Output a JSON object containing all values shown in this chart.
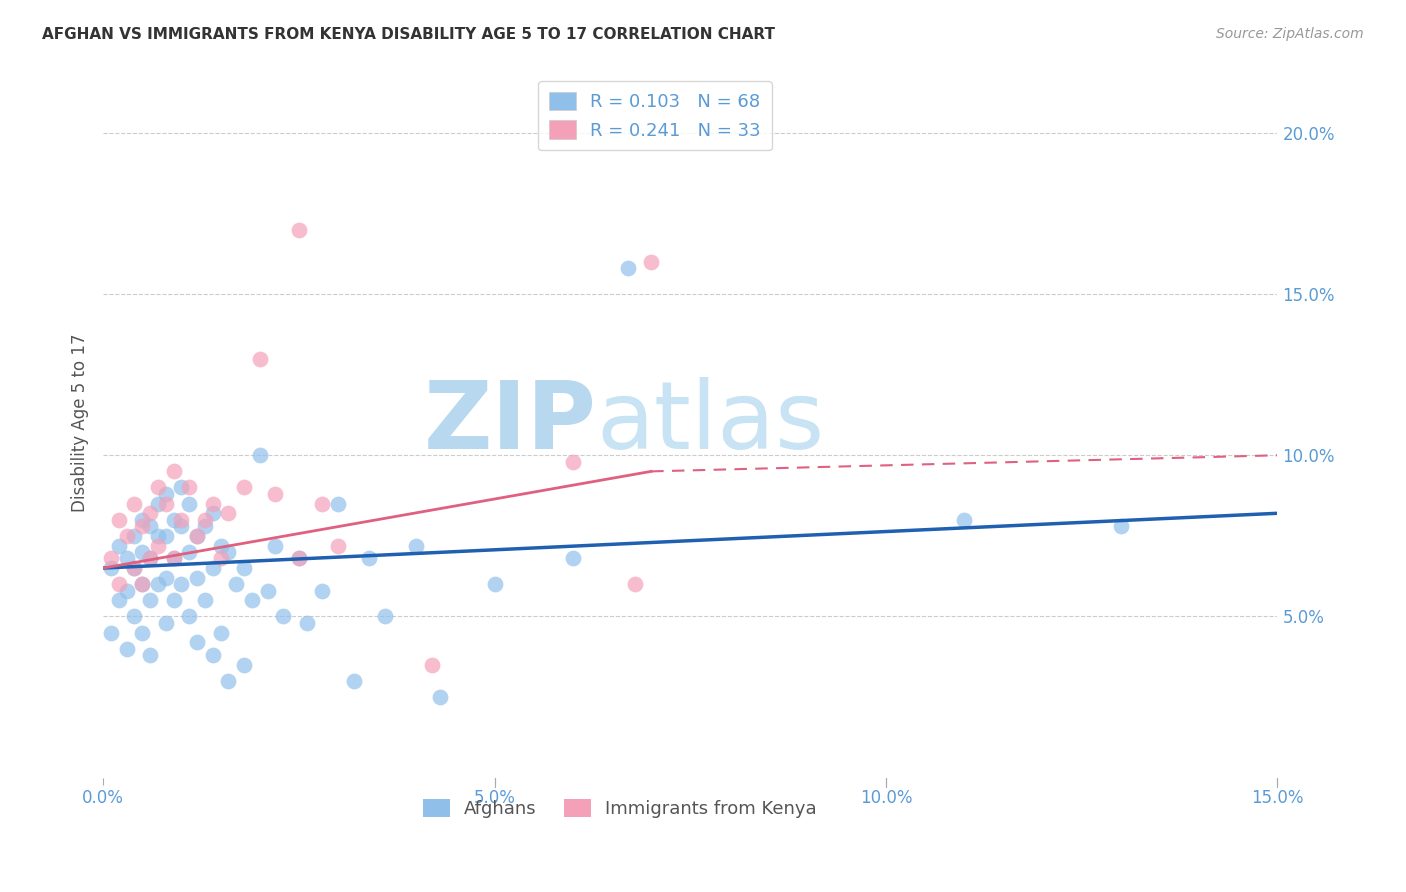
{
  "title": "AFGHAN VS IMMIGRANTS FROM KENYA DISABILITY AGE 5 TO 17 CORRELATION CHART",
  "source": "Source: ZipAtlas.com",
  "ylabel_label": "Disability Age 5 to 17",
  "xlim": [
    0.0,
    0.15
  ],
  "ylim": [
    0.0,
    0.22
  ],
  "afghan_R": 0.103,
  "afghan_N": 68,
  "kenya_R": 0.241,
  "kenya_N": 33,
  "color_afghan": "#90C0EA",
  "color_kenya": "#F4A0B8",
  "color_trendline_afghan": "#2060B0",
  "color_trendline_kenya": "#E06080",
  "watermark_color": "#C8E4F4",
  "background_color": "#FFFFFF",
  "grid_color": "#CCCCCC",
  "axis_tick_color": "#5B9BD5",
  "trendline_afghan_start": 0.065,
  "trendline_afghan_end": 0.082,
  "trendline_kenya_start": 0.065,
  "trendline_kenya_end_solid": 0.095,
  "trendline_kenya_x_solid_end": 0.07,
  "trendline_kenya_end_dashed": 0.1,
  "afghans_x": [
    0.001,
    0.001,
    0.002,
    0.002,
    0.003,
    0.003,
    0.003,
    0.004,
    0.004,
    0.004,
    0.005,
    0.005,
    0.005,
    0.005,
    0.006,
    0.006,
    0.006,
    0.006,
    0.007,
    0.007,
    0.007,
    0.008,
    0.008,
    0.008,
    0.008,
    0.009,
    0.009,
    0.009,
    0.01,
    0.01,
    0.01,
    0.011,
    0.011,
    0.011,
    0.012,
    0.012,
    0.012,
    0.013,
    0.013,
    0.014,
    0.014,
    0.014,
    0.015,
    0.015,
    0.016,
    0.016,
    0.017,
    0.018,
    0.018,
    0.019,
    0.02,
    0.021,
    0.022,
    0.023,
    0.025,
    0.026,
    0.028,
    0.03,
    0.032,
    0.034,
    0.036,
    0.04,
    0.043,
    0.05,
    0.06,
    0.067,
    0.11,
    0.13
  ],
  "afghans_y": [
    0.065,
    0.045,
    0.072,
    0.055,
    0.068,
    0.058,
    0.04,
    0.075,
    0.065,
    0.05,
    0.08,
    0.07,
    0.06,
    0.045,
    0.078,
    0.068,
    0.055,
    0.038,
    0.085,
    0.075,
    0.06,
    0.088,
    0.075,
    0.062,
    0.048,
    0.08,
    0.068,
    0.055,
    0.09,
    0.078,
    0.06,
    0.085,
    0.07,
    0.05,
    0.075,
    0.062,
    0.042,
    0.078,
    0.055,
    0.082,
    0.065,
    0.038,
    0.072,
    0.045,
    0.07,
    0.03,
    0.06,
    0.065,
    0.035,
    0.055,
    0.1,
    0.058,
    0.072,
    0.05,
    0.068,
    0.048,
    0.058,
    0.085,
    0.03,
    0.068,
    0.05,
    0.072,
    0.025,
    0.06,
    0.068,
    0.158,
    0.08,
    0.078
  ],
  "kenya_x": [
    0.001,
    0.002,
    0.002,
    0.003,
    0.004,
    0.004,
    0.005,
    0.005,
    0.006,
    0.006,
    0.007,
    0.007,
    0.008,
    0.009,
    0.009,
    0.01,
    0.011,
    0.012,
    0.013,
    0.014,
    0.015,
    0.016,
    0.018,
    0.02,
    0.022,
    0.025,
    0.025,
    0.028,
    0.03,
    0.042,
    0.06,
    0.068,
    0.07
  ],
  "kenya_y": [
    0.068,
    0.08,
    0.06,
    0.075,
    0.085,
    0.065,
    0.078,
    0.06,
    0.082,
    0.068,
    0.09,
    0.072,
    0.085,
    0.095,
    0.068,
    0.08,
    0.09,
    0.075,
    0.08,
    0.085,
    0.068,
    0.082,
    0.09,
    0.13,
    0.088,
    0.17,
    0.068,
    0.085,
    0.072,
    0.035,
    0.098,
    0.06,
    0.16
  ]
}
